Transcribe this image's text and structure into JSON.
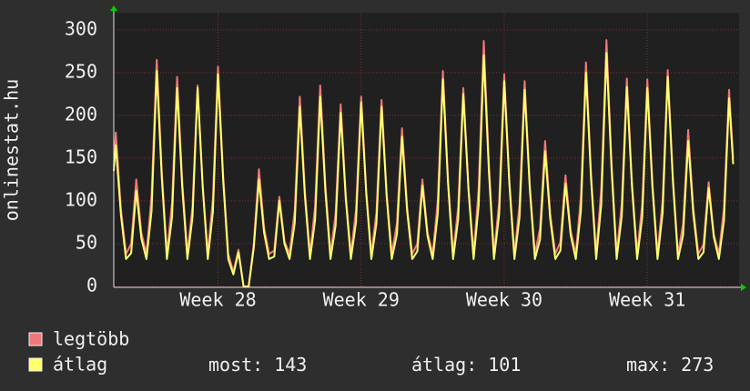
{
  "chart_data": {
    "type": "line",
    "ylabel": "onlinestat.hu",
    "xlim": [
      0,
      30.5
    ],
    "xticks": [
      {
        "value": 5.1,
        "label": "Week 28"
      },
      {
        "value": 12.1,
        "label": "Week 29"
      },
      {
        "value": 19.1,
        "label": "Week 30"
      },
      {
        "value": 26.1,
        "label": "Week 31"
      }
    ],
    "ylim": [
      0,
      320
    ],
    "yticks": [
      0,
      50,
      100,
      150,
      200,
      250,
      300
    ],
    "grid": true,
    "x": [
      0,
      0.1,
      0.35,
      0.6,
      0.85,
      1.1,
      1.35,
      1.6,
      1.85,
      2.1,
      2.35,
      2.6,
      2.85,
      3.1,
      3.35,
      3.6,
      3.85,
      4.1,
      4.35,
      4.6,
      4.85,
      5.1,
      5.35,
      5.6,
      5.85,
      6.1,
      6.35,
      6.6,
      6.85,
      7.1,
      7.35,
      7.6,
      7.85,
      8.1,
      8.35,
      8.6,
      8.85,
      9.1,
      9.35,
      9.6,
      9.85,
      10.1,
      10.35,
      10.6,
      10.85,
      11.1,
      11.35,
      11.6,
      11.85,
      12.1,
      12.35,
      12.6,
      12.85,
      13.1,
      13.35,
      13.6,
      13.85,
      14.1,
      14.35,
      14.6,
      14.85,
      15.1,
      15.35,
      15.6,
      15.85,
      16.1,
      16.35,
      16.6,
      16.85,
      17.1,
      17.35,
      17.6,
      17.85,
      18.1,
      18.35,
      18.6,
      18.85,
      19.1,
      19.35,
      19.6,
      19.85,
      20.1,
      20.35,
      20.6,
      20.85,
      21.1,
      21.35,
      21.6,
      21.85,
      22.1,
      22.35,
      22.6,
      22.85,
      23.1,
      23.35,
      23.6,
      23.85,
      24.1,
      24.35,
      24.6,
      24.85,
      25.1,
      25.35,
      25.6,
      25.85,
      26.1,
      26.35,
      26.6,
      26.85,
      27.1,
      27.35,
      27.6,
      27.85,
      28.1,
      28.35,
      28.6,
      28.85,
      29.1,
      29.35,
      29.6,
      29.85,
      30.1,
      30.3
    ],
    "series": [
      {
        "name": "legtöbb",
        "color": "#f07878",
        "values": [
          140,
          180,
          90,
          38,
          50,
          125,
          63,
          38,
          106,
          265,
          133,
          38,
          98,
          245,
          123,
          38,
          94,
          235,
          118,
          38,
          103,
          257,
          129,
          38,
          17,
          43,
          0,
          0,
          50,
          137,
          69,
          38,
          42,
          105,
          53,
          38,
          89,
          222,
          111,
          38,
          94,
          235,
          118,
          38,
          85,
          213,
          107,
          38,
          89,
          222,
          111,
          38,
          87,
          218,
          109,
          38,
          74,
          185,
          93,
          38,
          50,
          125,
          63,
          38,
          101,
          252,
          126,
          38,
          93,
          232,
          116,
          38,
          115,
          287,
          144,
          38,
          99,
          248,
          124,
          38,
          96,
          240,
          120,
          38,
          68,
          170,
          85,
          38,
          52,
          130,
          65,
          38,
          105,
          262,
          131,
          38,
          115,
          288,
          144,
          38,
          97,
          243,
          122,
          38,
          97,
          242,
          121,
          38,
          101,
          253,
          127,
          38,
          73,
          183,
          92,
          38,
          49,
          122,
          61,
          38,
          92,
          230,
          150
        ]
      },
      {
        "name": "átlag",
        "color": "#ffff70",
        "values": [
          135,
          165,
          83,
          32,
          39,
          112,
          56,
          32,
          88,
          252,
          126,
          32,
          81,
          232,
          116,
          32,
          81,
          232,
          116,
          32,
          87,
          248,
          124,
          32,
          14,
          40,
          0,
          0,
          45,
          125,
          63,
          32,
          35,
          100,
          50,
          32,
          74,
          210,
          105,
          32,
          78,
          222,
          111,
          32,
          71,
          203,
          102,
          32,
          75,
          215,
          108,
          32,
          74,
          210,
          105,
          32,
          61,
          175,
          88,
          32,
          41,
          118,
          59,
          32,
          85,
          242,
          121,
          32,
          79,
          225,
          113,
          32,
          95,
          270,
          135,
          32,
          84,
          240,
          120,
          32,
          81,
          230,
          115,
          32,
          55,
          158,
          79,
          32,
          42,
          120,
          60,
          32,
          88,
          250,
          125,
          32,
          96,
          273,
          137,
          32,
          82,
          233,
          117,
          32,
          81,
          232,
          116,
          32,
          86,
          245,
          123,
          32,
          60,
          170,
          85,
          32,
          40,
          115,
          58,
          32,
          77,
          220,
          143
        ]
      }
    ],
    "stats": [
      {
        "label": "most:",
        "value": 143
      },
      {
        "label": "átlag:",
        "value": 101
      },
      {
        "label": "max:",
        "value": 273
      }
    ]
  }
}
